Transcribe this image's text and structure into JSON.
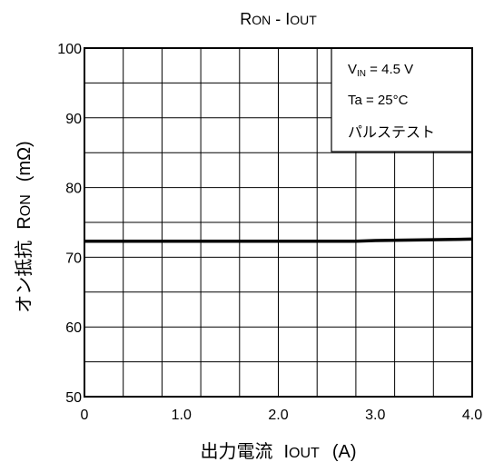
{
  "chart_data": {
    "type": "line",
    "title": {
      "main": "R",
      "main_small": "ON",
      "sep": " - I",
      "sub_small": "OUT"
    },
    "x": [
      0,
      0.5,
      1.0,
      1.5,
      2.0,
      2.5,
      2.8,
      3.0,
      3.5,
      4.0
    ],
    "series": [
      {
        "values": [
          72.3,
          72.3,
          72.3,
          72.3,
          72.3,
          72.3,
          72.3,
          72.4,
          72.5,
          72.6
        ]
      }
    ],
    "xlim": [
      0,
      4.0
    ],
    "ylim": [
      50,
      100
    ],
    "x_ticks": [
      0,
      1.0,
      2.0,
      3.0,
      4.0
    ],
    "x_tick_labels": [
      "0",
      "1.0",
      "2.0",
      "3.0",
      "4.0"
    ],
    "y_ticks": [
      50,
      60,
      70,
      80,
      90,
      100
    ],
    "y_tick_labels": [
      "50",
      "60",
      "70",
      "80",
      "90",
      "100"
    ],
    "x_minor_step": 0.4,
    "y_minor_step": 5,
    "grid": true,
    "xlabel": {
      "jp": "出力電流",
      "sym": "I",
      "sym_small": "OUT",
      "unit": "(A)"
    },
    "ylabel": {
      "jp": "オン抵抗",
      "sym": "R",
      "sym_small": "ON",
      "unit": "(mΩ)"
    },
    "annotation": {
      "vin_sym": "V",
      "vin_sub": "IN",
      "vin_val": " = 4.5 V",
      "ta": "Ta = 25°C",
      "test": "パルステスト",
      "placement": "top-right"
    },
    "line_color": "#000000"
  }
}
